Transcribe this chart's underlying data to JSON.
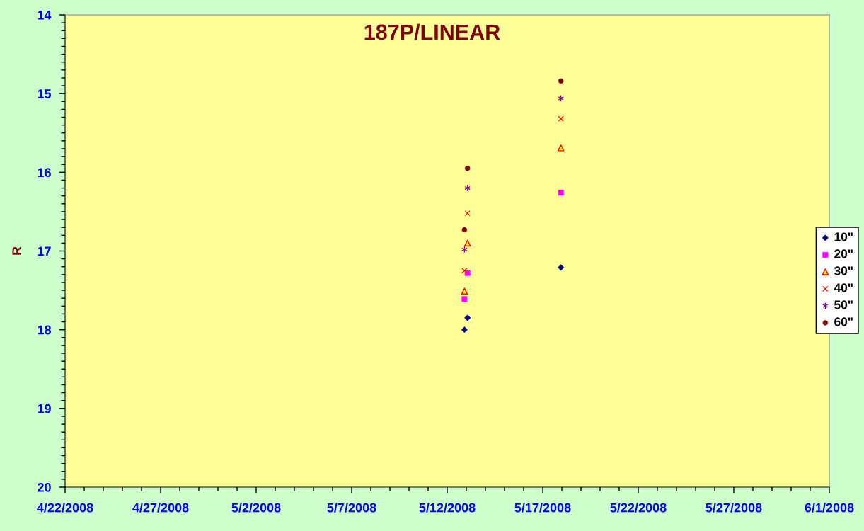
{
  "chart_data": {
    "type": "scatter",
    "title": "187P/LINEAR",
    "ylabel": "R",
    "x": [
      "2008-05-12T21:40",
      "2008-05-13T01:30",
      "2008-05-17T22:50"
    ],
    "series": [
      {
        "name": "10\"",
        "color": "#000080",
        "marker": "diamond",
        "values": [
          18.0,
          17.85,
          17.21
        ]
      },
      {
        "name": "20\"",
        "color": "#ff00ff",
        "marker": "square",
        "values": [
          17.61,
          17.28,
          16.26
        ]
      },
      {
        "name": "30\"",
        "color": "#ffff00",
        "marker": "triangle",
        "values": [
          17.51,
          16.9,
          15.69
        ]
      },
      {
        "name": "40\"",
        "color": "#ff0000",
        "marker": "cross",
        "values": [
          17.25,
          16.52,
          15.32
        ]
      },
      {
        "name": "50\"",
        "color": "#800080",
        "values": [
          16.98,
          16.2,
          15.06
        ]
      },
      {
        "name": "60\"",
        "color": "#800000",
        "marker": "circle",
        "values": [
          16.73,
          15.95,
          14.84
        ]
      }
    ],
    "xlim": [
      "2008-04-22",
      "2008-06-01"
    ],
    "xticks": [
      {
        "value": "2008-04-22",
        "label": "4/22/2008"
      },
      {
        "value": "2008-04-27",
        "label": "4/27/2008"
      },
      {
        "value": "2008-05-02",
        "label": "5/2/2008"
      },
      {
        "value": "2008-05-07",
        "label": "5/7/2008"
      },
      {
        "value": "2008-05-12",
        "label": "5/12/2008"
      },
      {
        "value": "2008-05-17",
        "label": "5/17/2008"
      },
      {
        "value": "2008-05-22",
        "label": "5/22/2008"
      },
      {
        "value": "2008-05-27",
        "label": "5/27/2008"
      },
      {
        "value": "2008-06-01",
        "label": "6/1/2008"
      }
    ],
    "ylim": [
      20,
      14
    ],
    "yticks": [
      14,
      15,
      16,
      17,
      18,
      19,
      20
    ],
    "legend": "right"
  }
}
